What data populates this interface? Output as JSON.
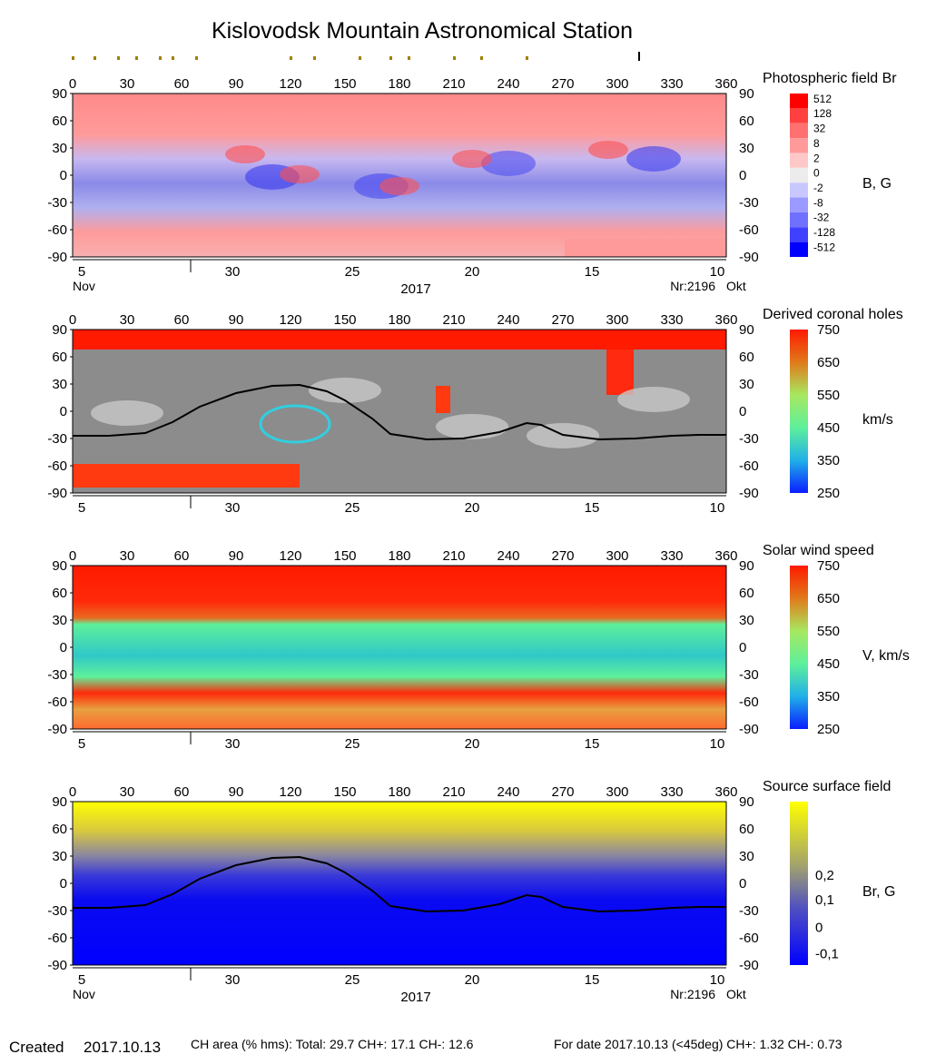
{
  "title": "Kislovodsk Mountain Astronomical Station",
  "lon_ticks": [
    0,
    30,
    60,
    90,
    120,
    150,
    180,
    210,
    240,
    270,
    300,
    330,
    360
  ],
  "lat_ticks": [
    90,
    60,
    30,
    0,
    -30,
    -60,
    -90
  ],
  "date_ticks": [
    {
      "label": "5",
      "lon": 5
    },
    {
      "label": "30",
      "lon": 88
    },
    {
      "label": "25",
      "lon": 154
    },
    {
      "label": "20",
      "lon": 220
    },
    {
      "label": "15",
      "lon": 286
    },
    {
      "label": "10",
      "lon": 355
    }
  ],
  "month_left": "Nov",
  "month_right": "Okt",
  "year": "2017",
  "rotation": "Nr:2196",
  "panels": [
    {
      "id": "photospheric",
      "label": "Photospheric field Br",
      "unit": "B, G",
      "scale": [
        "512",
        "128",
        "32",
        "8",
        "2",
        "0",
        "-2",
        "-8",
        "-32",
        "-128",
        "-512"
      ],
      "colors": [
        "#ff0000",
        "#ff4040",
        "#ff7070",
        "#ff9a9a",
        "#ffc8c8",
        "#ececec",
        "#c8c8ff",
        "#9a9aff",
        "#7070ff",
        "#4040ff",
        "#0000ff"
      ],
      "show_dates": true
    },
    {
      "id": "coronal_holes",
      "label": "Derived coronal holes",
      "unit": "km/s",
      "scale": [
        "750",
        "650",
        "550",
        "450",
        "350",
        "250"
      ],
      "colors": [
        "#ff1a00",
        "#e07a1a",
        "#a8e860",
        "#5ef09a",
        "#20b0e8",
        "#0a1eff"
      ],
      "show_dates": true
    },
    {
      "id": "solar_wind",
      "label": "Solar wind speed",
      "unit": "V, km/s",
      "scale": [
        "750",
        "650",
        "550",
        "450",
        "350",
        "250"
      ],
      "colors": [
        "#ff1a00",
        "#e07a1a",
        "#a8e860",
        "#5ef09a",
        "#20b0e8",
        "#0a1eff"
      ],
      "show_dates": true
    },
    {
      "id": "source_surface",
      "label": "Source surface field",
      "unit": "Br, G",
      "scale": [
        "0,2",
        "0,1",
        "0",
        "-0,1"
      ],
      "colors": [
        "#ffff00",
        "#9c9c70",
        "#3a3ad0",
        "#0000ff"
      ],
      "show_dates": true
    }
  ],
  "neutral_line": [
    [
      0,
      -27
    ],
    [
      20,
      -27
    ],
    [
      40,
      -24
    ],
    [
      55,
      -12
    ],
    [
      70,
      5
    ],
    [
      90,
      20
    ],
    [
      110,
      28
    ],
    [
      125,
      29
    ],
    [
      140,
      22
    ],
    [
      150,
      12
    ],
    [
      165,
      -8
    ],
    [
      175,
      -25
    ],
    [
      195,
      -31
    ],
    [
      215,
      -30
    ],
    [
      235,
      -23
    ],
    [
      250,
      -13
    ],
    [
      258,
      -15
    ],
    [
      270,
      -26
    ],
    [
      290,
      -31
    ],
    [
      310,
      -30
    ],
    [
      330,
      -27
    ],
    [
      345,
      -26
    ],
    [
      360,
      -26
    ]
  ],
  "top_markers_lon": [
    0,
    12,
    25,
    35,
    48,
    55,
    68,
    120,
    133,
    158,
    175,
    185,
    210,
    225,
    250,
    312
  ],
  "footer": {
    "created_label": "Created",
    "created_date": "2017.10.13",
    "ch_area": "CH area (% hms): Total: 29.7 CH+: 17.1   CH-: 12.6",
    "for_date": "For date 2017.10.13 (<45deg) CH+: 1.32    CH-: 0.73"
  },
  "chart_data": [
    {
      "type": "heatmap",
      "title": "Photospheric field Br",
      "zlabel": "B, G",
      "x_range": [
        0,
        360
      ],
      "y_range": [
        -90,
        90
      ],
      "colorbar_ticks": [
        512,
        128,
        32,
        8,
        2,
        0,
        -2,
        -8,
        -32,
        -128,
        -512
      ]
    },
    {
      "type": "heatmap",
      "title": "Derived coronal holes",
      "zlabel": "km/s",
      "x_range": [
        0,
        360
      ],
      "y_range": [
        -90,
        90
      ],
      "colorbar_ticks": [
        750,
        650,
        550,
        450,
        350,
        250
      ]
    },
    {
      "type": "heatmap",
      "title": "Solar wind speed",
      "zlabel": "V, km/s",
      "x_range": [
        0,
        360
      ],
      "y_range": [
        -90,
        90
      ],
      "colorbar_ticks": [
        750,
        650,
        550,
        450,
        350,
        250
      ]
    },
    {
      "type": "heatmap",
      "title": "Source surface field",
      "zlabel": "Br, G",
      "x_range": [
        0,
        360
      ],
      "y_range": [
        -90,
        90
      ],
      "colorbar_ticks": [
        0.2,
        0.1,
        0,
        -0.1
      ],
      "neutral_line": "see neutral_line"
    }
  ]
}
